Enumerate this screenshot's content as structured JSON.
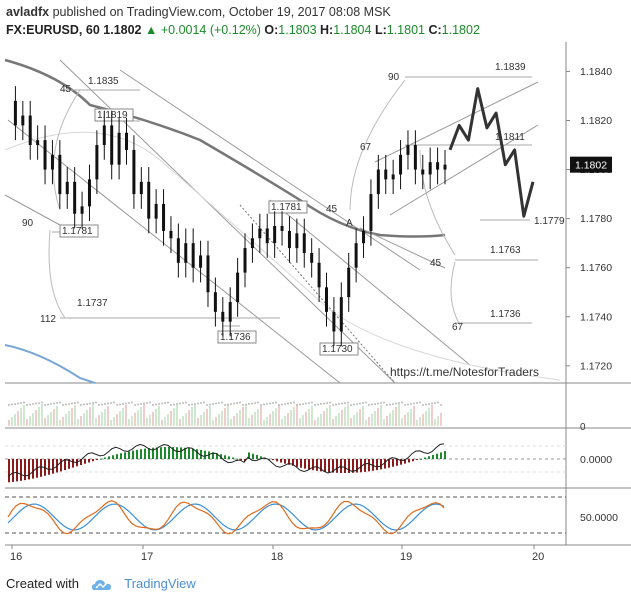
{
  "header": {
    "author": "avladfx",
    "published": "published on TradingView.com, October 19, 2017 08:08 MSK",
    "symbol": "FX:EURUSD, 60",
    "last": "1.1802",
    "change": "+0.0014 (+0.12%)",
    "open_label": "O:",
    "open": "1.1803",
    "high_label": "H:",
    "high": "1.1804",
    "low_label": "L:",
    "low": "1.1801",
    "close_label": "C:",
    "close": "1.1802"
  },
  "footer": {
    "created_with": "Created with",
    "brand": "TradingView"
  },
  "chart_data": {
    "type": "candlestick",
    "price_axis": {
      "ticks": [
        "1.1840",
        "1.1820",
        "1.1800",
        "1.1780",
        "1.1760",
        "1.1740",
        "1.1720"
      ],
      "range": [
        1.1713,
        1.1852
      ],
      "current_price_label": "1.1802"
    },
    "time_axis": {
      "ticks": [
        "16",
        "17",
        "18",
        "19",
        "20"
      ]
    },
    "annotations": {
      "price_labels": [
        "1.1835",
        "1.1819",
        "1.1781",
        "1.1737",
        "1.1736",
        "1.1781",
        "1.1730",
        "1.1839",
        "1.1811",
        "1.1779",
        "1.1763",
        "1.1736"
      ],
      "angle_labels": [
        "45",
        "90",
        "112",
        "45",
        "A",
        "90",
        "67",
        "45",
        "67"
      ],
      "link": "https://t.me/NotesforTraders"
    },
    "candles_path": [
      1.1828,
      1.1818,
      1.1822,
      1.181,
      1.1812,
      1.18,
      1.1806,
      1.179,
      1.1795,
      1.1782,
      1.1785,
      1.1796,
      1.181,
      1.1818,
      1.1802,
      1.1815,
      1.1808,
      1.179,
      1.1795,
      1.178,
      1.1786,
      1.1775,
      1.1772,
      1.1762,
      1.177,
      1.176,
      1.1765,
      1.175,
      1.1742,
      1.1738,
      1.1746,
      1.1758,
      1.1768,
      1.1772,
      1.1776,
      1.177,
      1.1777,
      1.1775,
      1.1768,
      1.1774,
      1.1766,
      1.1762,
      1.1752,
      1.1742,
      1.1734,
      1.1748,
      1.176,
      1.177,
      1.1775,
      1.179,
      1.18,
      1.1796,
      1.1798,
      1.1806,
      1.181,
      1.18,
      1.1798,
      1.1803,
      1.18,
      1.1802
    ],
    "forecast_path": [
      1.1808,
      1.1818,
      1.1812,
      1.1833,
      1.1817,
      1.1823,
      1.1802,
      1.1808,
      1.1781,
      1.1795
    ],
    "indicators": [
      {
        "name": "volume",
        "type": "histogram"
      },
      {
        "name": "oscillator",
        "type": "histogram",
        "ticks": [
          "0.0000"
        ]
      },
      {
        "name": "stochastic",
        "type": "line",
        "ticks": [
          "50.0000"
        ]
      }
    ],
    "colors": {
      "up": "#1b8a2a",
      "down": "#8b1a1a",
      "candle": "#111111",
      "current_badge": "#111111",
      "stoch_k": "#e06b1c",
      "stoch_d": "#3b8fd6"
    }
  }
}
